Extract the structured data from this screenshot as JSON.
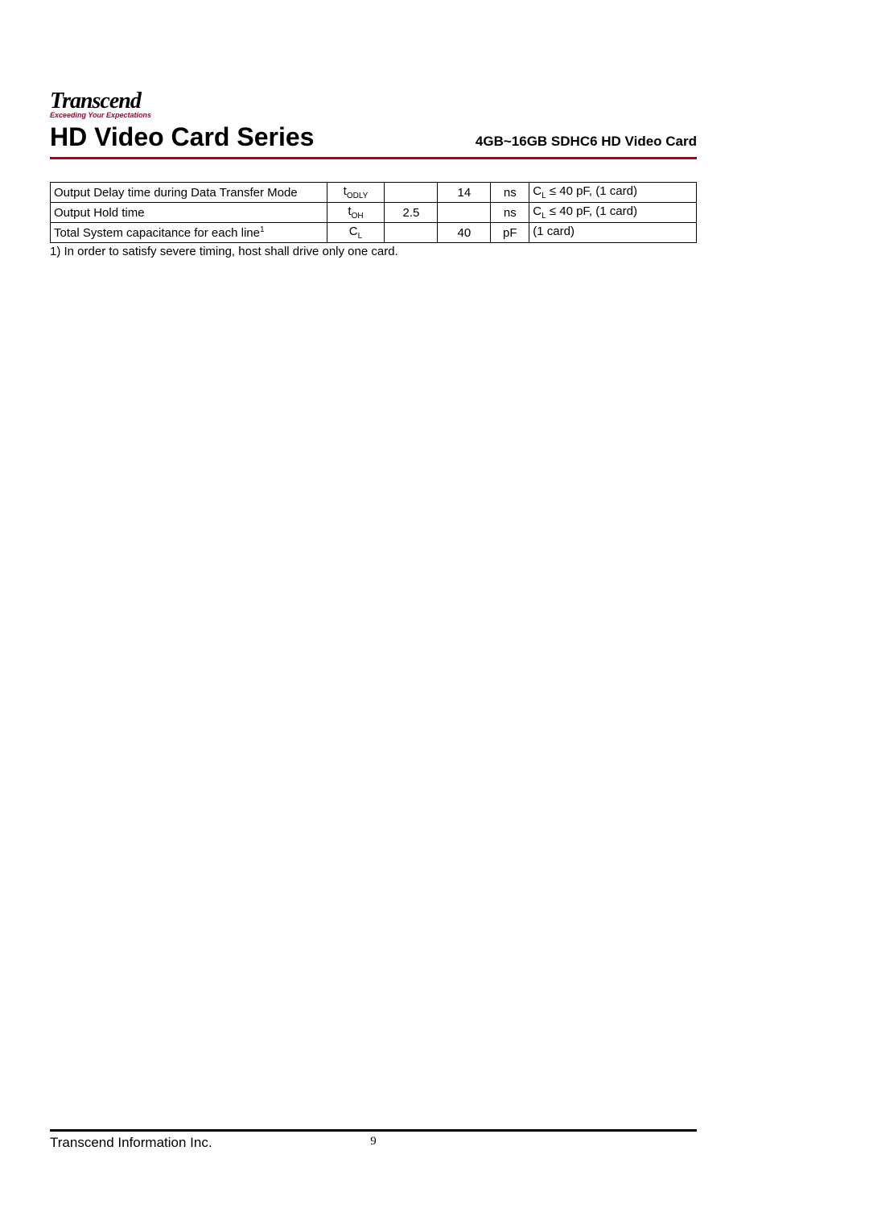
{
  "logo": {
    "brand": "Transcend",
    "tagline": "Exceeding Your Expectations"
  },
  "header": {
    "title": "HD Video Card Series",
    "subtitle": "4GB~16GB SDHC6 HD Video Card"
  },
  "table": {
    "rows": [
      {
        "param": "Output Delay time during Data Transfer Mode",
        "symbol_main": "t",
        "symbol_sub": "ODLY",
        "min": "",
        "max": "14",
        "unit": "ns",
        "remark_pre": "C",
        "remark_sub": "L",
        "remark_post": " ≤ 40 pF, (1 card)"
      },
      {
        "param": "Output Hold time",
        "symbol_main": "t",
        "symbol_sub": "OH",
        "min": "2.5",
        "max": "",
        "unit": "ns",
        "remark_pre": "C",
        "remark_sub": "L",
        "remark_post": " ≤ 40 pF, (1 card)"
      },
      {
        "param": "Total System capacitance for each line",
        "param_sup": "1",
        "symbol_main": "C",
        "symbol_sub": "L",
        "min": "",
        "max": "40",
        "unit": "pF",
        "remark_pre": "",
        "remark_sub": "",
        "remark_post": "(1 card)"
      }
    ]
  },
  "footnote": "1) In order to satisfy severe timing, host shall drive only one card.",
  "footer": {
    "company": "Transcend Information Inc.",
    "page": "9"
  },
  "colors": {
    "accent": "#b00020",
    "text": "#000000",
    "bg": "#ffffff"
  }
}
